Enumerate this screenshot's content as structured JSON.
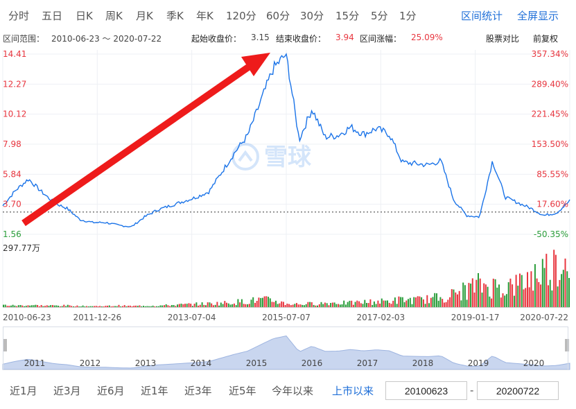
{
  "tabs": [
    {
      "label": "分时"
    },
    {
      "label": "五日"
    },
    {
      "label": "日K"
    },
    {
      "label": "周K"
    },
    {
      "label": "月K"
    },
    {
      "label": "季K"
    },
    {
      "label": "年K"
    },
    {
      "label": "120分"
    },
    {
      "label": "60分"
    },
    {
      "label": "30分"
    },
    {
      "label": "15分"
    },
    {
      "label": "5分"
    },
    {
      "label": "1分"
    }
  ],
  "tab_links": {
    "interval_stats": "区间统计",
    "fullscreen": "全屏显示"
  },
  "info": {
    "range_label": "区间范围：",
    "range_value": "2010-06-23 ～ 2020-07-22",
    "start_label": "起始收盘价：",
    "start_value": "3.15",
    "end_label": "结束收盘价：",
    "end_value": "3.94",
    "change_label": "区间涨幅：",
    "change_value": "25.09%",
    "compare": "股票对比",
    "adjust": "前复权"
  },
  "watermark": "雪球",
  "colors": {
    "line": "#1a73e8",
    "up": "#e8363f",
    "down": "#2a9d3a",
    "arrow": "#ee1b1b",
    "nav_fill": "#c9d6ef"
  },
  "chart_data": {
    "type": "line",
    "ylim": [
      1.56,
      14.41
    ],
    "price_ticks": [
      "14.41",
      "12.27",
      "10.12",
      "7.98",
      "5.84",
      "3.70",
      "1.56"
    ],
    "pct_ticks": [
      "357.34%",
      "289.40%",
      "221.45%",
      "153.50%",
      "85.55%",
      "17.60%",
      "-50.35%"
    ],
    "reference_price": 3.15,
    "volume_max_label": "297.77万",
    "x_tick_labels": [
      "2010-06-23",
      "2011-12-26",
      "2013-07-04",
      "2015-07-07",
      "2017-02-03",
      "2019-01-17",
      "2020-07-22"
    ],
    "navigator_years": [
      "2011",
      "2012",
      "2013",
      "2014",
      "2015",
      "2016",
      "2017",
      "2018",
      "2019",
      "2020"
    ],
    "series": [
      {
        "x": [
          "2010-06",
          "2010-09",
          "2010-12",
          "2011-03",
          "2011-06",
          "2011-09",
          "2011-12",
          "2012-03",
          "2012-06",
          "2012-09",
          "2012-12",
          "2013-03",
          "2013-06",
          "2013-09",
          "2013-12",
          "2014-03",
          "2014-06",
          "2014-09",
          "2014-12",
          "2015-02",
          "2015-04",
          "2015-06",
          "2015-07",
          "2015-09",
          "2015-12",
          "2016-03",
          "2016-06",
          "2016-09",
          "2016-12",
          "2017-03",
          "2017-06",
          "2017-09",
          "2017-12",
          "2018-03",
          "2018-06",
          "2018-09",
          "2018-12",
          "2019-02",
          "2019-04",
          "2019-06",
          "2019-09",
          "2019-12",
          "2020-03",
          "2020-05",
          "2020-07"
        ],
        "values": [
          3.6,
          4.7,
          5.5,
          4.6,
          3.8,
          3.4,
          2.6,
          2.4,
          2.4,
          2.2,
          2.1,
          2.8,
          3.3,
          3.6,
          3.9,
          4.2,
          4.6,
          6.0,
          7.4,
          8.6,
          11.0,
          13.4,
          14.4,
          8.3,
          10.5,
          8.5,
          8.6,
          9.2,
          8.7,
          9.1,
          8.7,
          6.7,
          6.6,
          6.5,
          6.8,
          4.0,
          2.9,
          2.8,
          6.8,
          4.2,
          3.8,
          3.4,
          2.9,
          3.1,
          3.94
        ]
      }
    ],
    "volume": [
      0.04,
      0.03,
      0.04,
      0.03,
      0.03,
      0.03,
      0.02,
      0.02,
      0.02,
      0.03,
      0.02,
      0.03,
      0.03,
      0.04,
      0.05,
      0.06,
      0.07,
      0.08,
      0.1,
      0.12,
      0.15,
      0.13,
      0.07,
      0.06,
      0.07,
      0.08,
      0.09,
      0.08,
      0.1,
      0.11,
      0.12,
      0.15,
      0.14,
      0.16,
      0.2,
      0.25,
      0.35,
      0.45,
      0.42,
      0.4,
      0.45,
      0.6,
      0.75,
      0.85,
      1.0
    ]
  },
  "ranges": [
    {
      "label": "近1月"
    },
    {
      "label": "近3月"
    },
    {
      "label": "近6月"
    },
    {
      "label": "近1年"
    },
    {
      "label": "近3年"
    },
    {
      "label": "近5年"
    },
    {
      "label": "今年以来"
    },
    {
      "label": "上市以来"
    }
  ],
  "date_from": "20100623",
  "date_to": "20200722",
  "date_sep": "-"
}
